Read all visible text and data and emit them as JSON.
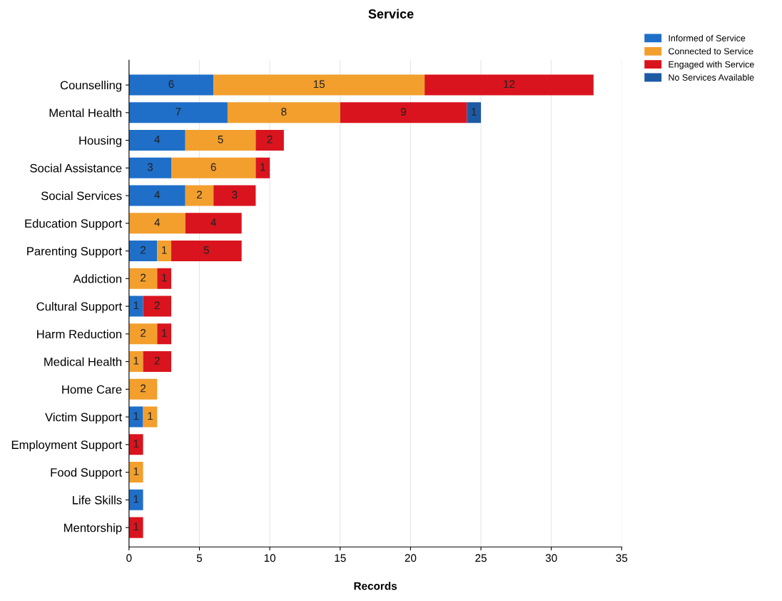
{
  "chart_data": {
    "type": "bar",
    "title": "Service",
    "xlabel": "Records",
    "orientation": "horizontal",
    "stacked": true,
    "categories": [
      "Counselling",
      "Mental Health",
      "Housing",
      "Social Assistance",
      "Social Services",
      "Education Support",
      "Parenting Support",
      "Addiction",
      "Cultural Support",
      "Harm Reduction",
      "Medical Health",
      "Home Care",
      "Victim Support",
      "Employment Support",
      "Food Support",
      "Life Skills",
      "Mentorship"
    ],
    "series": [
      {
        "name": "Informed of Service",
        "color": "#1f6fc8",
        "values": [
          6,
          7,
          4,
          3,
          4,
          null,
          2,
          null,
          1,
          null,
          null,
          null,
          1,
          null,
          null,
          1,
          null
        ]
      },
      {
        "name": "Connected to Service",
        "color": "#f29f2e",
        "values": [
          15,
          8,
          5,
          6,
          2,
          4,
          1,
          2,
          null,
          2,
          1,
          2,
          1,
          null,
          1,
          null,
          null
        ]
      },
      {
        "name": "Engaged with Service",
        "color": "#d9141e",
        "values": [
          12,
          9,
          2,
          1,
          3,
          4,
          5,
          1,
          2,
          1,
          2,
          null,
          null,
          1,
          null,
          null,
          1
        ]
      },
      {
        "name": "No Services Available",
        "color": "#1d5aa3",
        "values": [
          null,
          1,
          null,
          null,
          null,
          null,
          null,
          null,
          null,
          null,
          null,
          null,
          null,
          null,
          null,
          null,
          null
        ]
      }
    ],
    "xlim": [
      0,
      35
    ],
    "xticks": [
      0,
      5,
      10,
      15,
      20,
      25,
      30,
      35
    ],
    "grid": "x",
    "legend": "top right",
    "data_labels": true
  }
}
